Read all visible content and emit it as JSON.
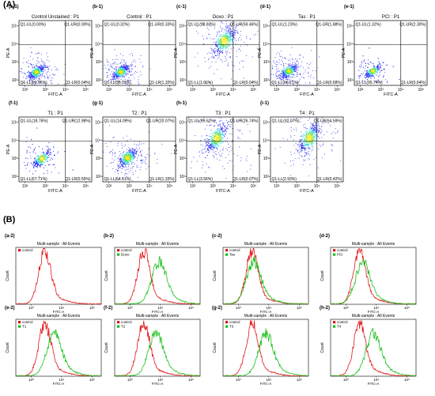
{
  "sections": {
    "a": "(A)",
    "b": "(B)"
  },
  "colors": {
    "dot_blue": "#2b2ff0",
    "dense_cyan": "#3ad9e6",
    "core_green": "#66e04a",
    "core_yellow": "#ffe600",
    "control_red": "#e01818",
    "sample_green": "#19c019"
  },
  "dot_axes": {
    "xlabel": "FITC-A",
    "ylabel": "PE-A",
    "ticks": [
      "10²",
      "10³",
      "10⁴",
      "10⁵"
    ]
  },
  "hist_axes": {
    "xlabel": "FITC-A",
    "ylabel": "Count",
    "title": "Multi-sample : All Events",
    "xticks": [
      "10³",
      "10⁴",
      "10⁵"
    ]
  },
  "chart_data": [
    {
      "type": "scatter",
      "panel": "(a-1)",
      "title": "Control Unstained : P1",
      "xlabel": "FITC-A",
      "ylabel": "PE-A",
      "scale": "log",
      "quadrants": {
        "UL": "Q1-UL(0.00%)",
        "UR": "Q1-UR(0.00%)",
        "LL": "Q1-LL(99.96%)",
        "LR": "Q1-LR(0.04%)"
      }
    },
    {
      "type": "scatter",
      "panel": "(b-1)",
      "title": "Control : P1",
      "xlabel": "FITC-A",
      "ylabel": "PE-A",
      "scale": "log",
      "quadrants": {
        "UL": "Q1-UL(0.32%)",
        "UR": "Q1-UR(0.33%)",
        "LL": "Q1-LL(98.03%)",
        "LR": "Q1-LR(1.32%)"
      }
    },
    {
      "type": "scatter",
      "panel": "(c-1)",
      "title": "Doxo : P1",
      "xlabel": "FITC-A",
      "ylabel": "PE-A",
      "scale": "log",
      "quadrants": {
        "UL": "Q1-UL(38.83%)",
        "UR": "Q1-UR(59.46%)",
        "LL": "Q1-LL(1.66%)",
        "LR": "Q1-LR(0.04%)"
      }
    },
    {
      "type": "scatter",
      "panel": "(d-1)",
      "title": "Tas : P1",
      "xlabel": "FITC-A",
      "ylabel": "PE-A",
      "scale": "log",
      "quadrants": {
        "UL": "Q1-UL(1.23%)",
        "UR": "Q1-UR(1.88%)",
        "LL": "Q1-LL(96.21%)",
        "LR": "Q1-LR(0.68%)"
      }
    },
    {
      "type": "scatter",
      "panel": "(e-1)",
      "title": "PCI : P1",
      "xlabel": "FITC-A",
      "ylabel": "PE-A",
      "scale": "log",
      "quadrants": {
        "UL": "Q1-UL(1.32%)",
        "UR": "Q1-UR(2.30%)",
        "LL": "Q1-LL(95.74%)",
        "LR": "Q1-LR(0.64%)"
      }
    },
    {
      "type": "scatter",
      "panel": "(f-1)",
      "title": "T1 : P1",
      "xlabel": "FITC-A",
      "ylabel": "PE-A",
      "scale": "log",
      "quadrants": {
        "UL": "Q1-UL(18.76%)",
        "UR": "Q1-UR(12.98%)",
        "LL": "Q1-LL(67.71%)",
        "LR": "Q1-LR(0.55%)"
      }
    },
    {
      "type": "scatter",
      "panel": "(g-1)",
      "title": "T2 : P1",
      "xlabel": "FITC-A",
      "ylabel": "PE-A",
      "scale": "log",
      "quadrants": {
        "UL": "Q1-UL(14.09%)",
        "UR": "Q1-UR(20.07%)",
        "LL": "Q1-LL(64.51%)",
        "LR": "Q1-LR(1.33%)"
      }
    },
    {
      "type": "scatter",
      "panel": "(h-1)",
      "title": "T3 : P1",
      "xlabel": "FITC-A",
      "ylabel": "PE-A",
      "scale": "log",
      "quadrants": {
        "UL": "Q1-UL(69.62%)",
        "UR": "Q1-UR(26.74%)",
        "LL": "Q1-LL(3.56%)",
        "LR": "Q1-LR(0.07%)"
      }
    },
    {
      "type": "scatter",
      "panel": "(i-1)",
      "title": "T4 : P1",
      "xlabel": "FITC-A",
      "ylabel": "PE-A",
      "scale": "log",
      "quadrants": {
        "UL": "Q1-UL(32.07%)",
        "UR": "Q1-UR(64.59%)",
        "LL": "Q1-LL(2.93%)",
        "LR": "Q1-LR(0.42%)"
      }
    },
    {
      "type": "area",
      "panel": "(a-2)",
      "title": "Multi-sample : All Events",
      "xlabel": "FITC-A",
      "ylabel": "Count",
      "scale": "log",
      "series": [
        {
          "name": "control",
          "color": "#e01818",
          "peak_log10": 3.45
        }
      ]
    },
    {
      "type": "area",
      "panel": "(b-2)",
      "title": "Multi-sample : All Events",
      "xlabel": "FITC-A",
      "ylabel": "Count",
      "scale": "log",
      "series": [
        {
          "name": "control",
          "color": "#e01818",
          "peak_log10": 3.45
        },
        {
          "name": "Doxo",
          "color": "#19c019",
          "peak_log10": 3.95
        }
      ]
    },
    {
      "type": "area",
      "panel": "(c-2)",
      "title": "Multi-sample : All Events",
      "xlabel": "FITC-A",
      "ylabel": "Count",
      "scale": "log",
      "series": [
        {
          "name": "control",
          "color": "#e01818",
          "peak_log10": 3.45
        },
        {
          "name": "Tas",
          "color": "#19c019",
          "peak_log10": 3.5
        }
      ]
    },
    {
      "type": "area",
      "panel": "(d-2)",
      "title": "Multi-sample : All Events",
      "xlabel": "FITC-A",
      "ylabel": "Count",
      "scale": "log",
      "series": [
        {
          "name": "control",
          "color": "#e01818",
          "peak_log10": 3.45
        },
        {
          "name": "PCI",
          "color": "#19c019",
          "peak_log10": 3.55
        }
      ]
    },
    {
      "type": "area",
      "panel": "(e-2)",
      "title": "Multi-sample : All Events",
      "xlabel": "FITC-A",
      "ylabel": "Count",
      "scale": "log",
      "series": [
        {
          "name": "control",
          "color": "#e01818",
          "peak_log10": 3.45
        },
        {
          "name": "T1",
          "color": "#19c019",
          "peak_log10": 3.75
        }
      ]
    },
    {
      "type": "area",
      "panel": "(f-2)",
      "title": "Multi-sample : All Events",
      "xlabel": "FITC-A",
      "ylabel": "Count",
      "scale": "log",
      "series": [
        {
          "name": "control",
          "color": "#e01818",
          "peak_log10": 3.45
        },
        {
          "name": "T2",
          "color": "#19c019",
          "peak_log10": 3.85
        }
      ]
    },
    {
      "type": "area",
      "panel": "(g-2)",
      "title": "Multi-sample : All Events",
      "xlabel": "FITC-A",
      "ylabel": "Count",
      "scale": "log",
      "series": [
        {
          "name": "control",
          "color": "#e01818",
          "peak_log10": 3.45
        },
        {
          "name": "T3",
          "color": "#19c019",
          "peak_log10": 3.9
        }
      ]
    },
    {
      "type": "area",
      "panel": "(h-2)",
      "title": "Multi-sample : All Events",
      "xlabel": "FITC-A",
      "ylabel": "Count",
      "scale": "log",
      "series": [
        {
          "name": "control",
          "color": "#e01818",
          "peak_log10": 3.45
        },
        {
          "name": "T4",
          "color": "#19c019",
          "peak_log10": 3.9
        }
      ]
    }
  ]
}
